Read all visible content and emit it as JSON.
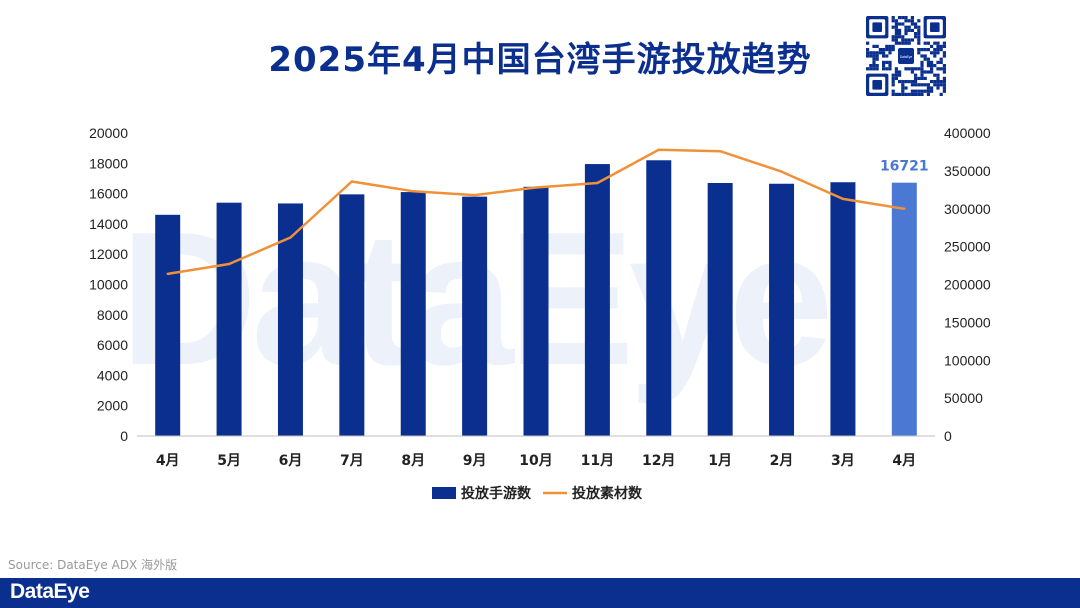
{
  "title": "2025年4月中国台湾手游投放趋势",
  "watermark": "DataEye",
  "source": "Source: DataEye ADX 海外版",
  "footer": {
    "brand": "DataEye"
  },
  "qr": {
    "center_label": "DataEye"
  },
  "colors": {
    "bar": "#0b2f8f",
    "bar_highlight": "#4a78d2",
    "line": "#f0913a",
    "title": "#0b2f8f",
    "footer": "#0b2f8f"
  },
  "chart_data": {
    "type": "bar",
    "categories": [
      "4月",
      "5月",
      "6月",
      "7月",
      "8月",
      "9月",
      "10月",
      "11月",
      "12月",
      "1月",
      "2月",
      "3月",
      "4月"
    ],
    "series": [
      {
        "name": "投放手游数",
        "type": "bar",
        "axis": "left",
        "values": [
          14600,
          15400,
          15350,
          15950,
          16100,
          15800,
          16450,
          17950,
          18200,
          16700,
          16650,
          16750,
          16721
        ]
      },
      {
        "name": "投放素材数",
        "type": "line",
        "axis": "right",
        "values": [
          214000,
          227000,
          262000,
          336000,
          323000,
          318000,
          328000,
          334000,
          378000,
          376000,
          349000,
          313000,
          300000
        ]
      }
    ],
    "highlight_index": 12,
    "data_labels": [
      {
        "index": 12,
        "text": "16721"
      }
    ],
    "y_left": {
      "range": [
        0,
        20000
      ],
      "ticks": [
        "0",
        "2000",
        "4000",
        "6000",
        "8000",
        "10000",
        "12000",
        "14000",
        "16000",
        "18000",
        "20000"
      ]
    },
    "y_right": {
      "range": [
        0,
        400000
      ],
      "ticks": [
        "0",
        "50000",
        "100000",
        "150000",
        "200000",
        "250000",
        "300000",
        "350000",
        "400000"
      ]
    },
    "legend_position": "bottom",
    "grid": false
  }
}
